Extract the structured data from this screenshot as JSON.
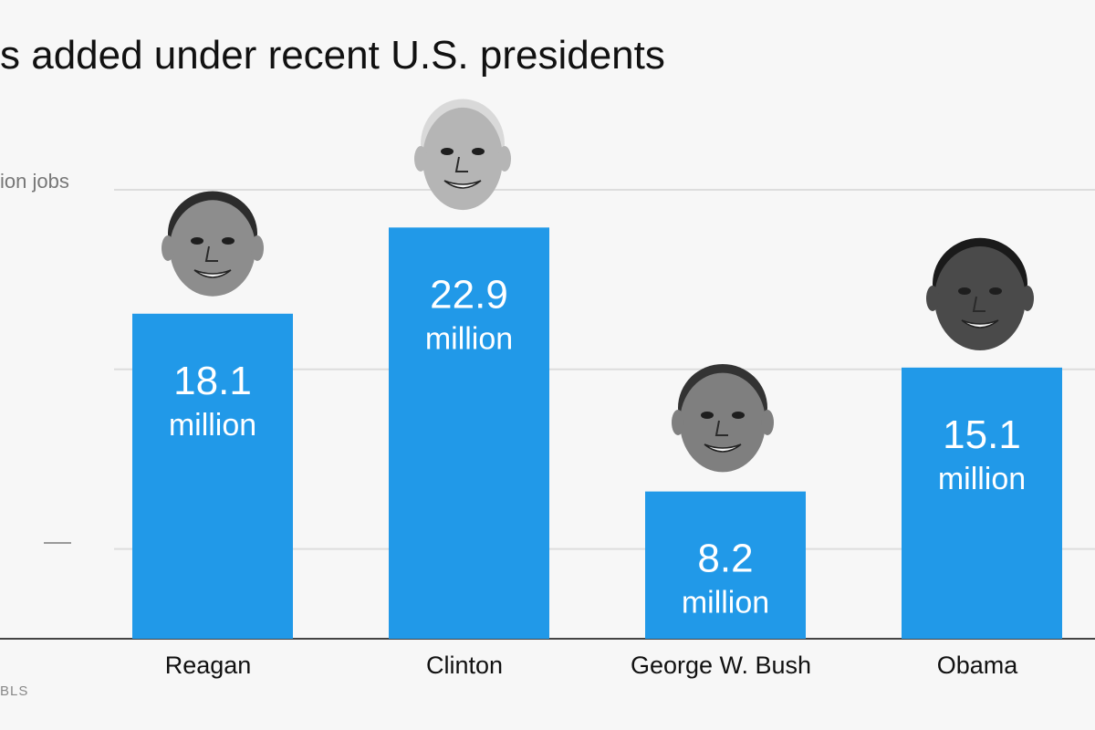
{
  "header": {
    "title": "s added under recent U.S. presidents",
    "axis_unit_label": "ion jobs",
    "source": "BLS"
  },
  "colors": {
    "bar": "#2199e8",
    "grid": "#dddddd",
    "background": "#f7f7f7",
    "bar_text": "#ffffff",
    "category_text": "#111111"
  },
  "chart_data": {
    "type": "bar",
    "title": "s added under recent U.S. presidents",
    "ylabel": "ion jobs",
    "xlabel": "",
    "unit": "million",
    "categories": [
      "Reagan",
      "Clinton",
      "George W. Bush",
      "Obama"
    ],
    "values": [
      18.1,
      22.9,
      8.2,
      15.1
    ],
    "value_labels": [
      "18.1",
      "22.9",
      "8.2",
      "15.1"
    ],
    "ylim": [
      0,
      25
    ],
    "gridlines": [
      5,
      15,
      25
    ],
    "grid": true,
    "icons": [
      "reagan-portrait-icon",
      "clinton-portrait-icon",
      "bush-portrait-icon",
      "obama-portrait-icon"
    ]
  }
}
